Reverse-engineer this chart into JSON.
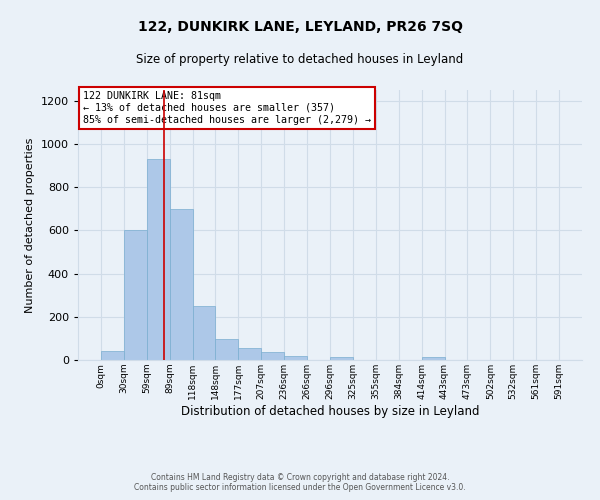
{
  "title": "122, DUNKIRK LANE, LEYLAND, PR26 7SQ",
  "subtitle": "Size of property relative to detached houses in Leyland",
  "xlabel": "Distribution of detached houses by size in Leyland",
  "ylabel": "Number of detached properties",
  "bin_edges": [
    0,
    29.5,
    59,
    88.5,
    118,
    147.5,
    177,
    206.5,
    236,
    265.5,
    295,
    324.5,
    354,
    383.5,
    413,
    442.5,
    472,
    501.5,
    531,
    560.5,
    590
  ],
  "bar_heights": [
    40,
    600,
    930,
    700,
    250,
    95,
    55,
    35,
    20,
    0,
    15,
    0,
    0,
    0,
    15,
    0,
    0,
    0,
    0,
    0
  ],
  "bar_color": "#adc8e8",
  "bar_edgecolor": "#7aaed0",
  "tick_labels": [
    "0sqm",
    "30sqm",
    "59sqm",
    "89sqm",
    "118sqm",
    "148sqm",
    "177sqm",
    "207sqm",
    "236sqm",
    "266sqm",
    "296sqm",
    "325sqm",
    "355sqm",
    "384sqm",
    "414sqm",
    "443sqm",
    "473sqm",
    "502sqm",
    "532sqm",
    "561sqm",
    "591sqm"
  ],
  "ylim": [
    0,
    1250
  ],
  "yticks": [
    0,
    200,
    400,
    600,
    800,
    1000,
    1200
  ],
  "property_line_x": 81,
  "property_line_color": "#cc0000",
  "annotation_line1": "122 DUNKIRK LANE: 81sqm",
  "annotation_line2": "← 13% of detached houses are smaller (357)",
  "annotation_line3": "85% of semi-detached houses are larger (2,279) →",
  "annotation_box_color": "#cc0000",
  "annotation_bg": "#ffffff",
  "footer_line1": "Contains HM Land Registry data © Crown copyright and database right 2024.",
  "footer_line2": "Contains public sector information licensed under the Open Government Licence v3.0.",
  "grid_color": "#d0dce8",
  "background_color": "#eaf1f8"
}
